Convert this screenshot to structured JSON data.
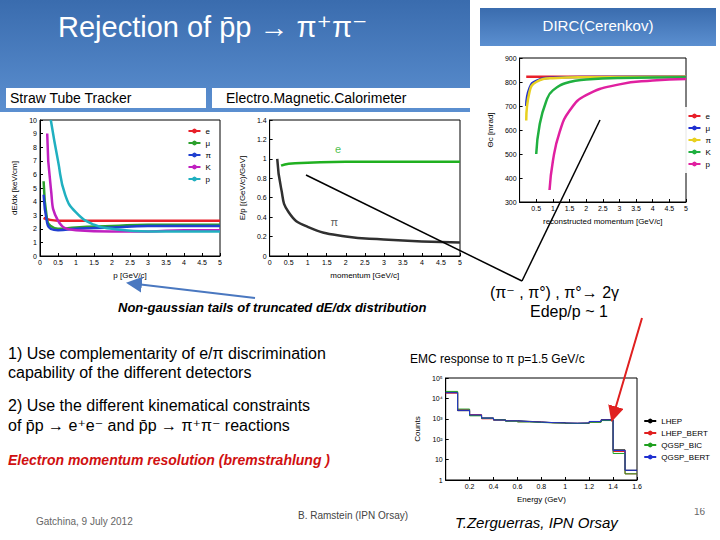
{
  "title": "Rejection of  p̄p → π⁺π⁻",
  "box_label": "DIRC(Cerenkov)",
  "detector_labels": [
    "Straw Tube Tracker",
    "Electro.Magnetic.Calorimeter"
  ],
  "annotation_tails": "Non-gaussian tails of truncated dE/dx distribution",
  "annotation_pi": [
    "(π⁻ , π°) , π°→ 2γ",
    "Edep/p ~ 1"
  ],
  "emc_caption": "EMC response to π  p=1.5 GeV/c",
  "points": [
    [
      "1) Use complementarity of  e/π discrimination",
      "capability of the different detectors"
    ],
    [
      "2) Use the different kinematical constraints",
      "of p̄p → e⁺e⁻ and p̄p → π⁺π⁻ reactions"
    ]
  ],
  "highlight": "Electron momentum resolution (bremstrahlung )",
  "footer": {
    "place_date": "Gatchina, 9 July 2012",
    "speaker": "B. Ramstein  (IPN Orsay)",
    "author": "T.Zerguerras, IPN Orsay",
    "page": "16"
  },
  "chart_data": [
    {
      "type": "line",
      "x_label": "p [GeV/c]",
      "y_label": "dE/dx [keV/cm]",
      "xlim": [
        0,
        5
      ],
      "xticks": [
        0,
        0.5,
        1,
        1.5,
        2,
        2.5,
        3,
        3.5,
        4,
        4.5,
        5
      ],
      "ylim": [
        0,
        10
      ],
      "yticks": [
        0,
        1,
        2,
        3,
        4,
        5,
        6,
        7,
        8,
        9,
        10
      ],
      "grid": false,
      "legend": "top-right",
      "series": [
        {
          "name": "e",
          "color": "#e8202a",
          "x": [
            0.1,
            0.2,
            0.5,
            1,
            2,
            3,
            4,
            5
          ],
          "values": [
            2.8,
            2.7,
            2.6,
            2.6,
            2.6,
            2.6,
            2.6,
            2.6
          ]
        },
        {
          "name": "μ",
          "color": "#2ca02c",
          "x": [
            0.1,
            0.2,
            0.3,
            0.5,
            1,
            2,
            3,
            4,
            5
          ],
          "values": [
            5.5,
            2.6,
            2.2,
            2.0,
            2.1,
            2.2,
            2.3,
            2.3,
            2.3
          ]
        },
        {
          "name": "π",
          "color": "#2040d0",
          "x": [
            0.1,
            0.2,
            0.3,
            0.5,
            1,
            2,
            3,
            4,
            5
          ],
          "values": [
            4.5,
            2.4,
            2.0,
            1.9,
            2.0,
            2.1,
            2.2,
            2.2,
            2.2
          ]
        },
        {
          "name": "K",
          "color": "#c020c0",
          "x": [
            0.2,
            0.3,
            0.5,
            1,
            2,
            3,
            4,
            5
          ],
          "values": [
            9,
            5,
            2.6,
            1.9,
            1.8,
            1.8,
            1.9,
            1.9
          ]
        },
        {
          "name": "p",
          "color": "#20b0c0",
          "x": [
            0.3,
            0.5,
            0.7,
            1,
            1.5,
            2,
            3,
            4,
            5
          ],
          "values": [
            10,
            7,
            4.5,
            3.2,
            2.3,
            2.0,
            1.8,
            1.8,
            1.8
          ]
        }
      ]
    },
    {
      "type": "line",
      "x_label": "momentum [GeV/c]",
      "y_label": "E/p [(GeV/c)/GeV]",
      "xlim": [
        0,
        5
      ],
      "xticks": [
        0,
        0.5,
        1,
        1.5,
        2,
        2.5,
        3,
        3.5,
        4,
        4.5,
        5
      ],
      "ylim": [
        0,
        1.4
      ],
      "yticks": [
        0,
        0.2,
        0.4,
        0.6,
        0.8,
        1,
        1.2,
        1.4
      ],
      "grid": false,
      "series": [
        {
          "name": "e",
          "color": "#20b020",
          "x": [
            0.3,
            0.5,
            1,
            2,
            3,
            4,
            5
          ],
          "values": [
            0.93,
            0.95,
            0.96,
            0.97,
            0.97,
            0.97,
            0.97
          ]
        },
        {
          "name": "π",
          "color": "#303030",
          "x": [
            0.2,
            0.3,
            0.5,
            1,
            2,
            3,
            4,
            5
          ],
          "values": [
            1.0,
            0.7,
            0.45,
            0.3,
            0.2,
            0.17,
            0.15,
            0.14
          ]
        }
      ],
      "annotations": [
        {
          "text": "e",
          "x": 1.8,
          "y": 1.1,
          "color": "#20b020"
        },
        {
          "text": "π",
          "x": 1.7,
          "y": 0.35,
          "color": "#303030"
        }
      ]
    },
    {
      "type": "line",
      "x_label": "reconstructed momentum [GeV/c]",
      "y_label": "Θc [mrad]",
      "xlim": [
        0,
        5
      ],
      "xticks": [
        0.5,
        1,
        1.5,
        2,
        2.5,
        3,
        3.5,
        4,
        4.5,
        5
      ],
      "ylim": [
        300,
        900
      ],
      "yticks": [
        300,
        400,
        500,
        600,
        700,
        800,
        900
      ],
      "grid": false,
      "legend": "right",
      "series": [
        {
          "name": "e",
          "color": "#e8202a",
          "x": [
            0.2,
            1,
            2,
            3,
            4,
            5
          ],
          "values": [
            822,
            822,
            822,
            822,
            822,
            822
          ]
        },
        {
          "name": "μ",
          "color": "#2030d0",
          "x": [
            0.2,
            0.3,
            0.5,
            1,
            2,
            5
          ],
          "values": [
            700,
            775,
            805,
            818,
            821,
            822
          ]
        },
        {
          "name": "π",
          "color": "#e8d020",
          "x": [
            0.2,
            0.3,
            0.5,
            1,
            2,
            5
          ],
          "values": [
            640,
            760,
            800,
            816,
            820,
            822
          ]
        },
        {
          "name": "K",
          "color": "#20b040",
          "x": [
            0.5,
            0.6,
            0.8,
            1,
            1.5,
            2,
            3,
            5
          ],
          "values": [
            500,
            620,
            720,
            765,
            800,
            810,
            817,
            820
          ]
        },
        {
          "name": "p",
          "color": "#e020a0",
          "x": [
            0.9,
            1,
            1.2,
            1.5,
            2,
            3,
            4,
            5
          ],
          "values": [
            350,
            470,
            590,
            680,
            745,
            790,
            806,
            813
          ]
        }
      ]
    },
    {
      "type": "histogram",
      "x_label": "Energy (GeV)",
      "y_label": "Counts",
      "log": "y",
      "xlim": [
        0,
        1.6
      ],
      "xticks": [
        0.2,
        0.4,
        0.6,
        0.8,
        1,
        1.2,
        1.4,
        1.6
      ],
      "ylim": [
        1,
        100000
      ],
      "yticks": [
        1,
        10,
        {
          "value": 100,
          "label": "10²"
        },
        {
          "value": 1000,
          "label": "10³"
        },
        {
          "value": 10000,
          "label": "10⁴"
        },
        {
          "value": 100000,
          "label": "10⁵"
        }
      ],
      "grid": false,
      "legend": "right",
      "bins": [
        0,
        0.1,
        0.2,
        0.3,
        0.4,
        0.5,
        0.6,
        0.7,
        0.8,
        0.9,
        1,
        1.1,
        1.2,
        1.3,
        1.4,
        1.5,
        1.6
      ],
      "series": [
        {
          "name": "LHEP",
          "color": "#000000",
          "values": [
            20000,
            2500,
            1500,
            1100,
            900,
            800,
            750,
            700,
            650,
            650,
            600,
            600,
            700,
            900,
            30,
            3
          ]
        },
        {
          "name": "LHEP_BERT",
          "color": "#e02020",
          "values": [
            18000,
            2800,
            1600,
            1000,
            850,
            780,
            720,
            680,
            640,
            620,
            600,
            620,
            720,
            850,
            25,
            2
          ]
        },
        {
          "name": "QGSP_BIC",
          "color": "#20a020",
          "values": [
            22000,
            3000,
            1400,
            1050,
            880,
            760,
            700,
            660,
            630,
            610,
            590,
            610,
            680,
            820,
            20,
            2
          ]
        },
        {
          "name": "QGSP_BERT",
          "color": "#2030d0",
          "values": [
            19000,
            2600,
            1550,
            1080,
            870,
            790,
            730,
            690,
            650,
            630,
            610,
            630,
            740,
            880,
            28,
            3
          ]
        }
      ]
    }
  ]
}
